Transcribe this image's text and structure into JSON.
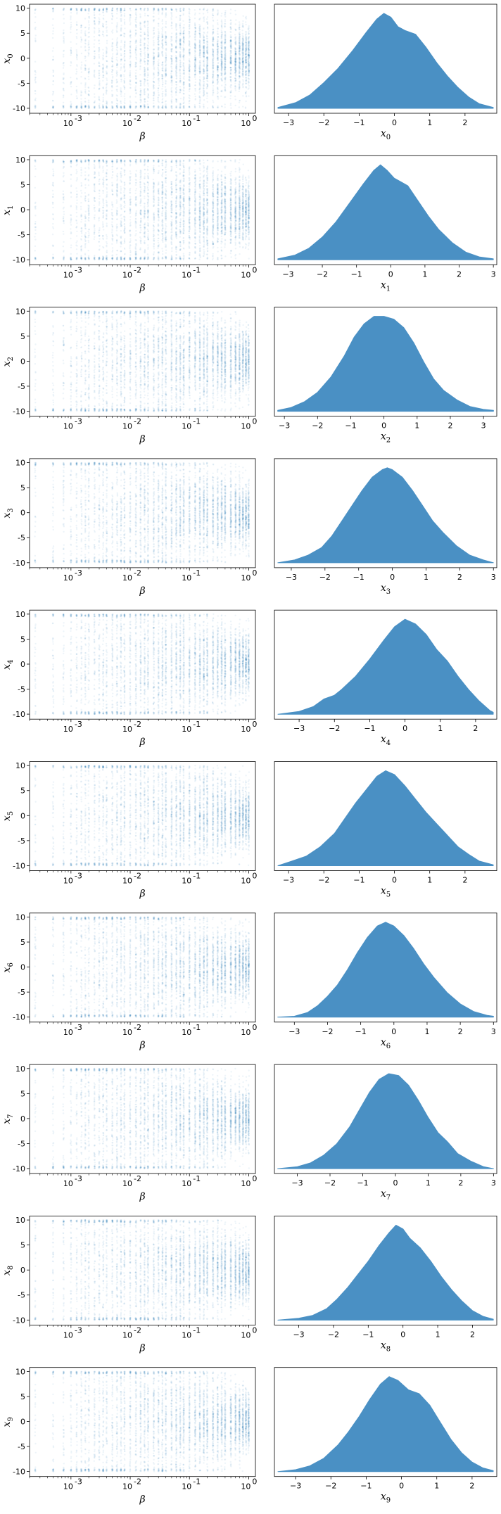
{
  "chart_data": {
    "type": "figure-grid",
    "rows": 10,
    "colors": {
      "points": "#1f77b4",
      "density": "#4a90c4"
    },
    "scatter": {
      "type": "scatter",
      "xscale": "log",
      "xlim": [
        0.0002,
        1.3
      ],
      "ylim": [
        -11,
        10.8
      ],
      "x_tick_labels": [
        "10",
        "10",
        "10",
        "10"
      ],
      "x_tick_exponents": [
        "-3",
        "-2",
        "-1",
        "0"
      ],
      "x_ticks": [
        0.001,
        0.01,
        0.1,
        1
      ],
      "y_ticks": [
        -10,
        -5,
        0,
        5,
        10
      ],
      "xlabel": "β",
      "beta_values": [
        0.00025,
        0.0005,
        0.00075,
        0.001,
        0.00125,
        0.0015,
        0.00175,
        0.002,
        0.0025,
        0.003,
        0.0035,
        0.004,
        0.005,
        0.006,
        0.007,
        0.008,
        0.01,
        0.0125,
        0.015,
        0.0175,
        0.02,
        0.025,
        0.03,
        0.035,
        0.04,
        0.05,
        0.06,
        0.07,
        0.08,
        0.1,
        0.125,
        0.15,
        0.175,
        0.2,
        0.25,
        0.3,
        0.35,
        0.4,
        0.5,
        0.6,
        0.7,
        0.8,
        0.9,
        1.0
      ],
      "note_y_range": "x values uniform in [-10,10] at small beta, concentrated near 0 (about ±3) at beta=1"
    },
    "density": {
      "type": "area",
      "y_ticks_visible": false
    },
    "panels": [
      {
        "ylabel": "x",
        "sub": "0",
        "xlabel": "x",
        "xlim": [
          -3.4,
          2.9
        ],
        "xticks": [
          -3,
          -2,
          -1,
          0,
          1,
          2
        ],
        "curve": [
          [
            -3.3,
            0.01
          ],
          [
            -2.8,
            0.06
          ],
          [
            -2.4,
            0.14
          ],
          [
            -2.0,
            0.27
          ],
          [
            -1.6,
            0.42
          ],
          [
            -1.2,
            0.6
          ],
          [
            -0.8,
            0.8
          ],
          [
            -0.5,
            0.94
          ],
          [
            -0.3,
            1.0
          ],
          [
            -0.1,
            0.96
          ],
          [
            0.1,
            0.86
          ],
          [
            0.3,
            0.82
          ],
          [
            0.6,
            0.78
          ],
          [
            0.9,
            0.64
          ],
          [
            1.2,
            0.48
          ],
          [
            1.5,
            0.34
          ],
          [
            1.8,
            0.22
          ],
          [
            2.1,
            0.12
          ],
          [
            2.4,
            0.05
          ],
          [
            2.8,
            0.01
          ]
        ]
      },
      {
        "ylabel": "x",
        "sub": "1",
        "xlabel": "x",
        "xlim": [
          -3.4,
          3.1
        ],
        "xticks": [
          -3,
          -2,
          -1,
          0,
          1,
          2,
          3
        ],
        "curve": [
          [
            -3.3,
            0.01
          ],
          [
            -2.8,
            0.05
          ],
          [
            -2.4,
            0.12
          ],
          [
            -2.0,
            0.24
          ],
          [
            -1.6,
            0.4
          ],
          [
            -1.2,
            0.6
          ],
          [
            -0.8,
            0.8
          ],
          [
            -0.5,
            0.94
          ],
          [
            -0.3,
            1.0
          ],
          [
            -0.1,
            0.94
          ],
          [
            0.1,
            0.86
          ],
          [
            0.3,
            0.82
          ],
          [
            0.5,
            0.78
          ],
          [
            0.8,
            0.62
          ],
          [
            1.1,
            0.46
          ],
          [
            1.4,
            0.32
          ],
          [
            1.8,
            0.18
          ],
          [
            2.2,
            0.08
          ],
          [
            2.6,
            0.03
          ],
          [
            3.0,
            0.01
          ]
        ]
      },
      {
        "ylabel": "x",
        "sub": "2",
        "xlabel": "x",
        "xlim": [
          -3.3,
          3.4
        ],
        "xticks": [
          -3,
          -2,
          -1,
          0,
          1,
          2,
          3
        ],
        "curve": [
          [
            -3.2,
            0.01
          ],
          [
            -2.8,
            0.04
          ],
          [
            -2.4,
            0.1
          ],
          [
            -2.0,
            0.2
          ],
          [
            -1.6,
            0.36
          ],
          [
            -1.2,
            0.58
          ],
          [
            -0.9,
            0.78
          ],
          [
            -0.6,
            0.92
          ],
          [
            -0.3,
            1.0
          ],
          [
            0.0,
            1.0
          ],
          [
            0.3,
            0.97
          ],
          [
            0.6,
            0.88
          ],
          [
            0.9,
            0.72
          ],
          [
            1.2,
            0.52
          ],
          [
            1.5,
            0.34
          ],
          [
            1.8,
            0.22
          ],
          [
            2.2,
            0.12
          ],
          [
            2.6,
            0.05
          ],
          [
            3.0,
            0.02
          ],
          [
            3.3,
            0.01
          ]
        ]
      },
      {
        "ylabel": "x",
        "sub": "3",
        "xlabel": "x",
        "xlim": [
          -3.5,
          3.1
        ],
        "xticks": [
          -3,
          -2,
          -1,
          0,
          1,
          2,
          3
        ],
        "curve": [
          [
            -3.4,
            0.0
          ],
          [
            -2.9,
            0.03
          ],
          [
            -2.5,
            0.08
          ],
          [
            -2.1,
            0.16
          ],
          [
            -1.8,
            0.28
          ],
          [
            -1.5,
            0.44
          ],
          [
            -1.2,
            0.6
          ],
          [
            -0.9,
            0.76
          ],
          [
            -0.6,
            0.9
          ],
          [
            -0.3,
            0.98
          ],
          [
            -0.15,
            1.0
          ],
          [
            0.0,
            0.98
          ],
          [
            0.3,
            0.9
          ],
          [
            0.6,
            0.76
          ],
          [
            0.9,
            0.6
          ],
          [
            1.2,
            0.44
          ],
          [
            1.5,
            0.32
          ],
          [
            1.9,
            0.18
          ],
          [
            2.3,
            0.08
          ],
          [
            2.7,
            0.03
          ],
          [
            3.0,
            0.0
          ]
        ]
      },
      {
        "ylabel": "x",
        "sub": "4",
        "xlabel": "x",
        "xlim": [
          -3.7,
          2.6
        ],
        "xticks": [
          -3,
          -2,
          -1,
          0,
          1,
          2
        ],
        "curve": [
          [
            -3.6,
            0.0
          ],
          [
            -3.0,
            0.03
          ],
          [
            -2.6,
            0.08
          ],
          [
            -2.3,
            0.16
          ],
          [
            -2.0,
            0.2
          ],
          [
            -1.8,
            0.26
          ],
          [
            -1.4,
            0.4
          ],
          [
            -1.0,
            0.58
          ],
          [
            -0.6,
            0.78
          ],
          [
            -0.3,
            0.92
          ],
          [
            0.0,
            1.0
          ],
          [
            0.3,
            0.95
          ],
          [
            0.6,
            0.84
          ],
          [
            0.9,
            0.68
          ],
          [
            1.2,
            0.56
          ],
          [
            1.5,
            0.4
          ],
          [
            1.8,
            0.26
          ],
          [
            2.1,
            0.14
          ],
          [
            2.4,
            0.04
          ],
          [
            2.5,
            0.02
          ]
        ]
      },
      {
        "ylabel": "x",
        "sub": "5",
        "xlabel": "x",
        "xlim": [
          -3.4,
          2.9
        ],
        "xticks": [
          -3,
          -2,
          -1,
          0,
          1,
          2
        ],
        "curve": [
          [
            -3.3,
            0.0
          ],
          [
            -2.9,
            0.05
          ],
          [
            -2.5,
            0.1
          ],
          [
            -2.1,
            0.2
          ],
          [
            -1.7,
            0.34
          ],
          [
            -1.4,
            0.5
          ],
          [
            -1.1,
            0.66
          ],
          [
            -0.8,
            0.8
          ],
          [
            -0.5,
            0.94
          ],
          [
            -0.25,
            1.0
          ],
          [
            0.0,
            0.96
          ],
          [
            0.3,
            0.84
          ],
          [
            0.6,
            0.7
          ],
          [
            0.9,
            0.56
          ],
          [
            1.2,
            0.44
          ],
          [
            1.5,
            0.32
          ],
          [
            1.8,
            0.2
          ],
          [
            2.1,
            0.12
          ],
          [
            2.4,
            0.05
          ],
          [
            2.8,
            0.01
          ]
        ]
      },
      {
        "ylabel": "x",
        "sub": "6",
        "xlabel": "x",
        "xlim": [
          -3.6,
          3.1
        ],
        "xticks": [
          -3,
          -2,
          -1,
          0,
          1,
          2,
          3
        ],
        "curve": [
          [
            -3.5,
            0.0
          ],
          [
            -3.0,
            0.01
          ],
          [
            -2.6,
            0.05
          ],
          [
            -2.3,
            0.12
          ],
          [
            -2.0,
            0.22
          ],
          [
            -1.7,
            0.34
          ],
          [
            -1.4,
            0.5
          ],
          [
            -1.1,
            0.68
          ],
          [
            -0.8,
            0.84
          ],
          [
            -0.5,
            0.96
          ],
          [
            -0.25,
            1.0
          ],
          [
            0.0,
            0.96
          ],
          [
            0.3,
            0.86
          ],
          [
            0.6,
            0.72
          ],
          [
            0.9,
            0.56
          ],
          [
            1.2,
            0.42
          ],
          [
            1.6,
            0.26
          ],
          [
            2.0,
            0.14
          ],
          [
            2.4,
            0.06
          ],
          [
            2.8,
            0.02
          ],
          [
            3.0,
            0.01
          ]
        ]
      },
      {
        "ylabel": "x",
        "sub": "7",
        "xlabel": "x",
        "xlim": [
          -3.7,
          3.1
        ],
        "xticks": [
          -3,
          -2,
          -1,
          0,
          1,
          2,
          3
        ],
        "curve": [
          [
            -3.6,
            0.0
          ],
          [
            -3.0,
            0.02
          ],
          [
            -2.6,
            0.06
          ],
          [
            -2.2,
            0.14
          ],
          [
            -1.8,
            0.26
          ],
          [
            -1.4,
            0.44
          ],
          [
            -1.1,
            0.62
          ],
          [
            -0.8,
            0.8
          ],
          [
            -0.5,
            0.94
          ],
          [
            -0.2,
            1.0
          ],
          [
            0.1,
            0.98
          ],
          [
            0.4,
            0.88
          ],
          [
            0.7,
            0.72
          ],
          [
            1.0,
            0.54
          ],
          [
            1.3,
            0.38
          ],
          [
            1.6,
            0.28
          ],
          [
            1.9,
            0.16
          ],
          [
            2.3,
            0.08
          ],
          [
            2.7,
            0.02
          ],
          [
            3.0,
            0.0
          ]
        ]
      },
      {
        "ylabel": "x",
        "sub": "8",
        "xlabel": "x",
        "xlim": [
          -3.7,
          2.7
        ],
        "xticks": [
          -3,
          -2,
          -1,
          0,
          1,
          2
        ],
        "curve": [
          [
            -3.6,
            0.0
          ],
          [
            -3.0,
            0.02
          ],
          [
            -2.6,
            0.05
          ],
          [
            -2.2,
            0.12
          ],
          [
            -1.9,
            0.22
          ],
          [
            -1.6,
            0.34
          ],
          [
            -1.3,
            0.48
          ],
          [
            -1.0,
            0.62
          ],
          [
            -0.7,
            0.78
          ],
          [
            -0.4,
            0.92
          ],
          [
            -0.2,
            1.0
          ],
          [
            0.0,
            0.96
          ],
          [
            0.2,
            0.86
          ],
          [
            0.5,
            0.76
          ],
          [
            0.8,
            0.62
          ],
          [
            1.1,
            0.46
          ],
          [
            1.4,
            0.32
          ],
          [
            1.7,
            0.2
          ],
          [
            2.0,
            0.1
          ],
          [
            2.3,
            0.04
          ],
          [
            2.6,
            0.01
          ]
        ]
      },
      {
        "ylabel": "x",
        "sub": "9",
        "xlabel": "x",
        "xlim": [
          -3.6,
          2.7
        ],
        "xticks": [
          -3,
          -2,
          -1,
          0,
          1,
          2
        ],
        "curve": [
          [
            -3.5,
            0.0
          ],
          [
            -3.0,
            0.02
          ],
          [
            -2.6,
            0.06
          ],
          [
            -2.2,
            0.14
          ],
          [
            -1.8,
            0.28
          ],
          [
            -1.5,
            0.42
          ],
          [
            -1.2,
            0.58
          ],
          [
            -0.9,
            0.76
          ],
          [
            -0.6,
            0.92
          ],
          [
            -0.35,
            1.0
          ],
          [
            -0.1,
            0.96
          ],
          [
            0.2,
            0.86
          ],
          [
            0.5,
            0.82
          ],
          [
            0.8,
            0.7
          ],
          [
            1.1,
            0.52
          ],
          [
            1.4,
            0.34
          ],
          [
            1.7,
            0.2
          ],
          [
            2.0,
            0.1
          ],
          [
            2.3,
            0.04
          ],
          [
            2.6,
            0.01
          ]
        ]
      }
    ]
  }
}
